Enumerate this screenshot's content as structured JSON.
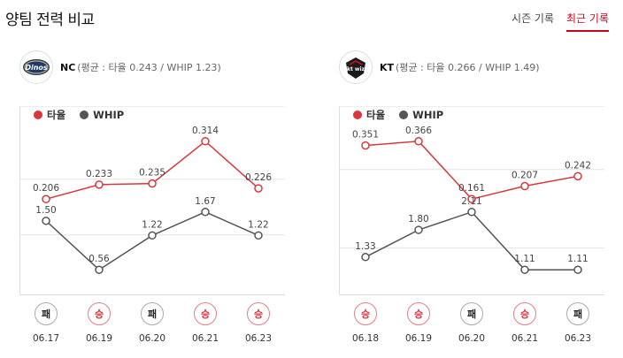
{
  "header": {
    "title": "양팀 전력 비교",
    "tabs": [
      {
        "label": "시즌 기록",
        "active": false
      },
      {
        "label": "최근 기록",
        "active": true
      }
    ]
  },
  "colors": {
    "avg": "#d9363e",
    "whip": "#555555",
    "accent": "#d0021b"
  },
  "legend": {
    "avg": "타율",
    "whip": "WHIP"
  },
  "teams": [
    {
      "name": "NC",
      "summary": "(평균 : 타율 0.243 / WHIP 1.23)",
      "logo_icon": "dinos-logo-icon",
      "logo_text": "Dinos",
      "results": [
        {
          "result": "패",
          "win": false,
          "date": "06.17"
        },
        {
          "result": "승",
          "win": true,
          "date": "06.19"
        },
        {
          "result": "패",
          "win": false,
          "date": "06.20"
        },
        {
          "result": "승",
          "win": true,
          "date": "06.21"
        },
        {
          "result": "승",
          "win": true,
          "date": "06.23"
        }
      ]
    },
    {
      "name": "KT",
      "summary": "(평균 : 타율 0.266 / WHIP 1.49)",
      "logo_icon": "kt-wiz-logo-icon",
      "logo_text": "kt wiz",
      "results": [
        {
          "result": "승",
          "win": true,
          "date": "06.18"
        },
        {
          "result": "승",
          "win": true,
          "date": "06.19"
        },
        {
          "result": "패",
          "win": false,
          "date": "06.20"
        },
        {
          "result": "승",
          "win": true,
          "date": "06.21"
        },
        {
          "result": "패",
          "win": false,
          "date": "06.23"
        }
      ]
    }
  ],
  "chart_data": [
    {
      "type": "line",
      "categories": [
        "06.17",
        "06.19",
        "06.20",
        "06.21",
        "06.23"
      ],
      "series": [
        {
          "name": "타율",
          "values": [
            0.206,
            0.233,
            0.235,
            0.314,
            0.226
          ],
          "labels": [
            "0.206",
            "0.233",
            "0.235",
            "0.314",
            "0.226"
          ]
        },
        {
          "name": "WHIP",
          "values": [
            1.5,
            0.56,
            1.22,
            1.67,
            1.22
          ],
          "labels": [
            "1.50",
            "0.56",
            "1.22",
            "1.67",
            "1.22"
          ]
        }
      ],
      "avg_ref": {
        "avg": 0.243,
        "whip": 1.23
      }
    },
    {
      "type": "line",
      "categories": [
        "06.18",
        "06.19",
        "06.20",
        "06.21",
        "06.23"
      ],
      "series": [
        {
          "name": "타율",
          "values": [
            0.351,
            0.366,
            0.161,
            0.207,
            0.242
          ],
          "labels": [
            "0.351",
            "0.366",
            "0.161",
            "0.207",
            "0.242"
          ]
        },
        {
          "name": "WHIP",
          "values": [
            1.33,
            1.8,
            2.11,
            1.11,
            1.11
          ],
          "labels": [
            "1.33",
            "1.80",
            "2.11",
            "1.11",
            "1.11"
          ]
        }
      ],
      "avg_ref": {
        "avg": 0.266,
        "whip": 1.49
      }
    }
  ]
}
